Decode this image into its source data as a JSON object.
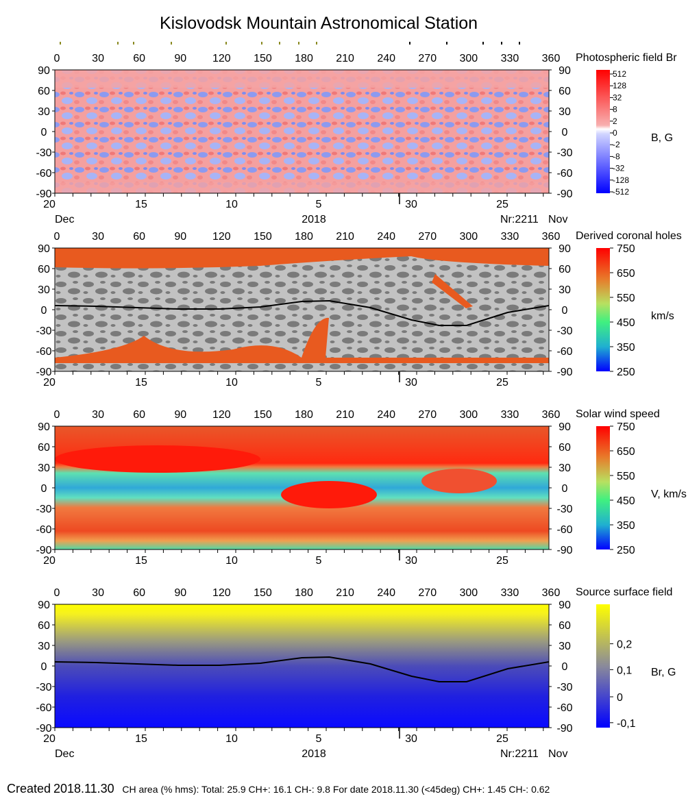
{
  "title": "Kislovodsk Mountain Astronomical Station",
  "colors": {
    "positive_field": "#f47d7d",
    "negative_field": "#6f7ff0",
    "coronal_hole": "#e85a1f",
    "background_grey": "#c0c0c0",
    "dark_grey": "#808080",
    "wind_fast": "#ee3a1c",
    "wind_slow": "#3fd0c8",
    "yellow": "#ffff00",
    "blue": "#1010ff"
  },
  "axes": {
    "longitude_ticks": [
      "0",
      "30",
      "60",
      "90",
      "120",
      "150",
      "180",
      "210",
      "240",
      "270",
      "300",
      "330",
      "360"
    ],
    "latitude_ticks": [
      "90",
      "60",
      "30",
      "0",
      "-30",
      "-60",
      "-90"
    ],
    "date_ticks": [
      "20",
      "15",
      "10",
      "5",
      "30",
      "25"
    ],
    "month_left": "Dec",
    "month_right": "Nov",
    "year": "2018",
    "rotation": "Nr:2211"
  },
  "chart_data": [
    {
      "type": "heatmap",
      "title": "Photospheric field Br",
      "unit_label": "B, G",
      "colorbar_ticks": [
        "512",
        "128",
        "32",
        "8",
        "2",
        "0",
        "-2",
        "-8",
        "-32",
        "-128",
        "-512"
      ],
      "xlim": [
        0,
        360
      ],
      "ylim": [
        -90,
        90
      ]
    },
    {
      "type": "heatmap",
      "title": "Derived coronal holes",
      "unit_label": "km/s",
      "colorbar_ticks": [
        "750",
        "650",
        "550",
        "450",
        "350",
        "250"
      ],
      "xlim": [
        0,
        360
      ],
      "ylim": [
        -90,
        90
      ],
      "neutral_line": {
        "x": [
          0,
          30,
          60,
          90,
          120,
          150,
          180,
          200,
          230,
          260,
          280,
          300,
          330,
          360
        ],
        "y": [
          6,
          5,
          3,
          1,
          1,
          4,
          12,
          13,
          3,
          -15,
          -23,
          -23,
          -4,
          6
        ]
      }
    },
    {
      "type": "heatmap",
      "title": "Solar wind speed",
      "unit_label": "V, km/s",
      "colorbar_ticks": [
        "750",
        "650",
        "550",
        "450",
        "350",
        "250"
      ],
      "xlim": [
        0,
        360
      ],
      "ylim": [
        -90,
        90
      ]
    },
    {
      "type": "heatmap",
      "title": "Source surface field",
      "unit_label": "Br, G",
      "colorbar_ticks": [
        "0,2",
        "0,1",
        "0",
        "-0,1"
      ],
      "xlim": [
        0,
        360
      ],
      "ylim": [
        -90,
        90
      ],
      "neutral_line": {
        "x": [
          0,
          30,
          60,
          90,
          120,
          150,
          180,
          200,
          230,
          260,
          280,
          300,
          330,
          360
        ],
        "y": [
          6,
          5,
          3,
          1,
          1,
          4,
          12,
          13,
          3,
          -15,
          -23,
          -23,
          -4,
          6
        ]
      }
    }
  ],
  "footer": {
    "created_label": "Created",
    "created_date": "2018.11.30",
    "stats": "CH area (% hms): Total: 25.9 CH+: 16.1    CH-: 9.8    For date 2018.11.30 (<45deg) CH+: 1.45    CH-: 0.62"
  }
}
